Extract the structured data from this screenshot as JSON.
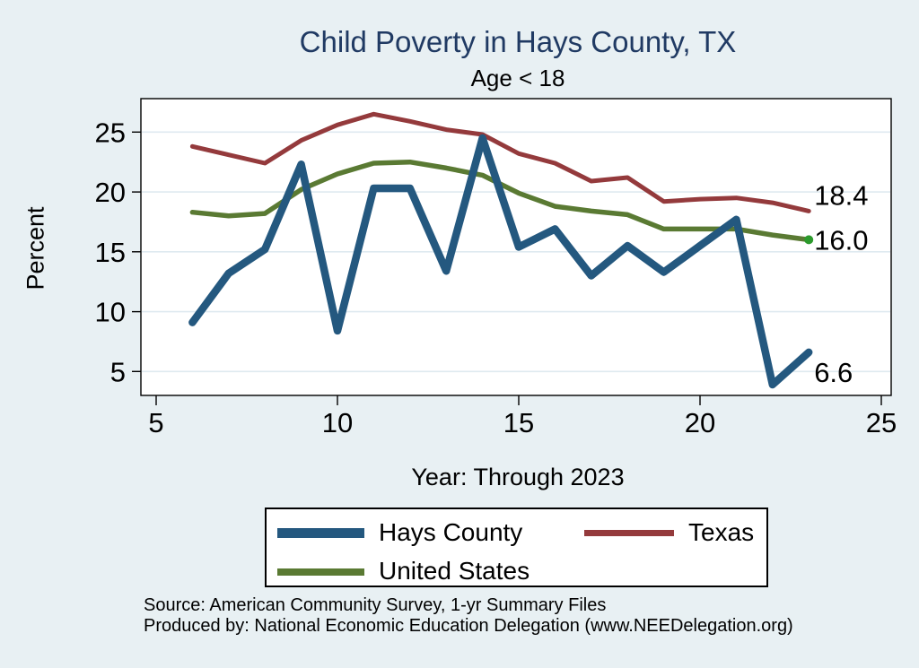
{
  "header": {
    "title": "Child Poverty in Hays County, TX",
    "subtitle": "Age < 18"
  },
  "chart_data": {
    "type": "line",
    "title": "Child Poverty in Hays County, TX",
    "subtitle": "Age < 18",
    "xlabel": "Year: Through 2023",
    "ylabel": "Percent",
    "grid": "horizontal-only",
    "legend_position": "bottom",
    "xlim": [
      4.6,
      25.3
    ],
    "ylim": [
      2.9,
      27.8
    ],
    "x_ticks": [
      "5",
      "10",
      "15",
      "20",
      "25"
    ],
    "y_ticks": [
      "5",
      "10",
      "15",
      "20",
      "25"
    ],
    "x": [
      6,
      7,
      8,
      9,
      10,
      11,
      12,
      13,
      14,
      15,
      16,
      17,
      18,
      19,
      20,
      21,
      22,
      23
    ],
    "series": [
      {
        "name": "Texas",
        "color": "#943a3c",
        "line_width": 5,
        "end_label": "18.4",
        "end_label_dy": -7,
        "end_marker": false,
        "values": [
          23.8,
          23.1,
          22.4,
          24.3,
          25.6,
          26.5,
          25.9,
          25.2,
          24.8,
          23.2,
          22.4,
          20.9,
          21.2,
          19.2,
          19.4,
          19.5,
          19.1,
          18.4
        ]
      },
      {
        "name": "United States",
        "color": "#5a7a33",
        "line_width": 5.5,
        "end_label": "16.0",
        "end_label_dy": 11,
        "end_marker": true,
        "marker_color": "#2c9a2c",
        "values": [
          18.3,
          18.0,
          18.2,
          20.2,
          21.5,
          22.4,
          22.5,
          22.0,
          21.4,
          19.9,
          18.8,
          18.4,
          18.1,
          16.9,
          16.9,
          16.9,
          16.4,
          16.0
        ]
      },
      {
        "name": "Hays County",
        "color": "#24587f",
        "line_width": 8.5,
        "end_label": "6.6",
        "end_label_dy": 33,
        "end_marker": false,
        "values": [
          9.1,
          13.2,
          15.2,
          22.3,
          8.4,
          20.3,
          20.3,
          13.4,
          24.5,
          15.4,
          16.9,
          13.0,
          15.5,
          13.3,
          15.5,
          17.7,
          3.9,
          6.6
        ]
      }
    ]
  },
  "legend": {
    "items": [
      {
        "label": "Hays County"
      },
      {
        "label": "Texas"
      },
      {
        "label": "United States"
      }
    ]
  },
  "footer": {
    "source_line1": "Source: American Community Survey, 1-yr Summary Files",
    "source_line2": "Produced by: National Economic Education Delegation (www.NEEDelegation.org)"
  },
  "colors": {
    "page_background": "#e8f0f3",
    "plot_background": "#ffffff",
    "gridline": "#dfeaf0",
    "axis": "#000000",
    "title": "#203a63"
  }
}
